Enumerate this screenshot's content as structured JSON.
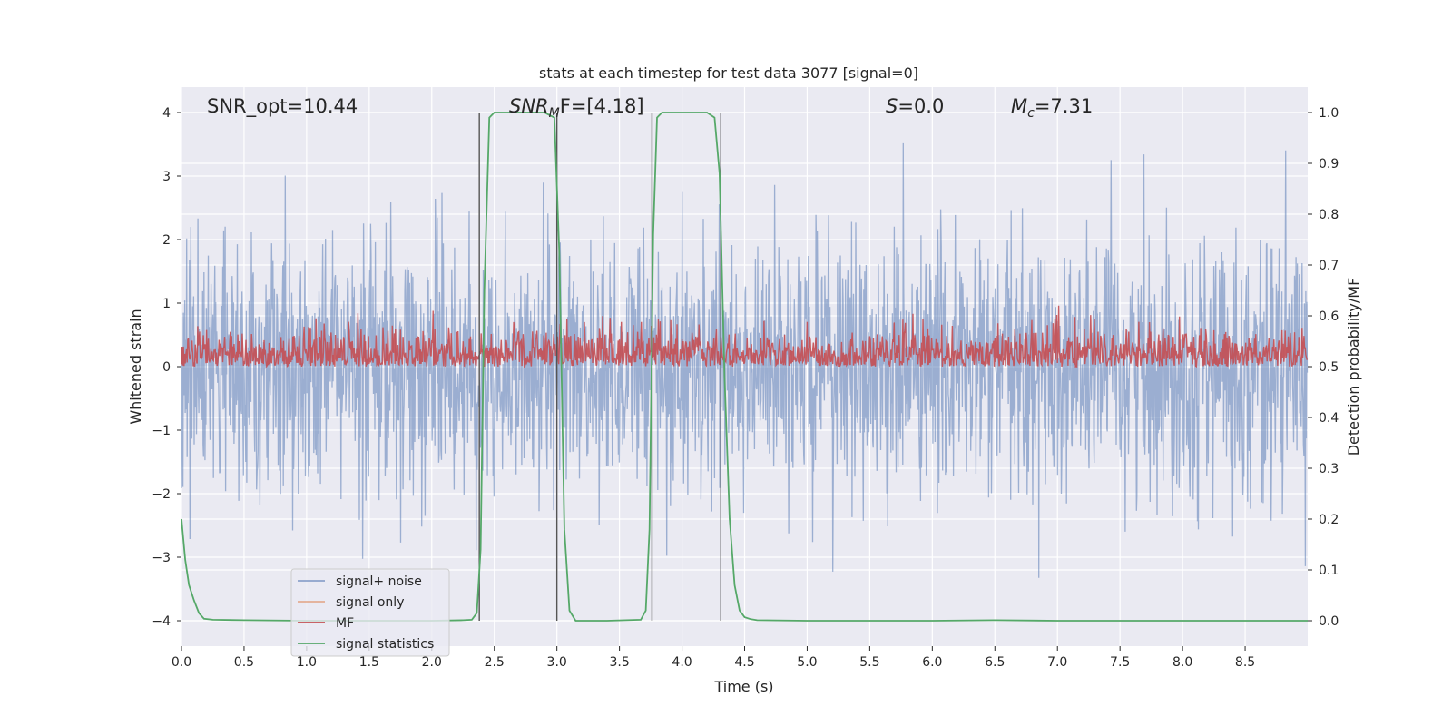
{
  "chart_data": {
    "type": "line",
    "title": "stats at each timestep for test data 3077 [signal=0]",
    "xlabel": "Time (s)",
    "ylabel": "Whitened strain",
    "y2label": "Detection probability/MF",
    "xlim": [
      0.0,
      9.0
    ],
    "ylim": [
      -4.4,
      4.4
    ],
    "y2lim": [
      -0.05,
      1.05
    ],
    "xticks": [
      "0.0",
      "0.5",
      "1.0",
      "1.5",
      "2.0",
      "2.5",
      "3.0",
      "3.5",
      "4.0",
      "4.5",
      "5.0",
      "5.5",
      "6.0",
      "6.5",
      "7.0",
      "7.5",
      "8.0",
      "8.5"
    ],
    "yticks": [
      "4",
      "3",
      "2",
      "1",
      "0",
      "−1",
      "−2",
      "−3",
      "−4"
    ],
    "y2ticks": [
      "1.0",
      "0.9",
      "0.8",
      "0.7",
      "0.6",
      "0.5",
      "0.4",
      "0.3",
      "0.2",
      "0.1",
      "0.0"
    ],
    "grid": true,
    "background": "#eaeaf2",
    "colors": {
      "signal_noise": "#4c72b0",
      "signal_only": "#dd8452",
      "mf": "#c44e52",
      "signal_statistics": "#55a868",
      "vlines": "#555555"
    },
    "legend": {
      "placement": "lower-left",
      "entries": [
        "signal+ noise",
        "signal only",
        "MF",
        "signal statistics"
      ]
    },
    "annotations": {
      "snr_opt": "SNR_opt=10.44",
      "snr_mf_prefix": "SNR",
      "snr_mf_sub": "M",
      "snr_mf_suffix": "F=[4.18]",
      "s_label": "S",
      "s_value": "=0.0",
      "mc_label": "M",
      "mc_sub": "c",
      "mc_value": "=7.31"
    },
    "vertical_lines_x": [
      2.38,
      3.0,
      3.76,
      4.31
    ],
    "series": [
      {
        "name": "signal+ noise",
        "description": "whitened strain noise, roughly Gaussian, std ~1.0, spans about -4 to 4",
        "std": 1.0
      },
      {
        "name": "MF",
        "description": "matched-filter output on right axis, between 0.5 and ~0.6",
        "base": 0.5,
        "range": [
          0.5,
          0.6
        ]
      },
      {
        "name": "signal statistics",
        "x": [
          0.0,
          0.03,
          0.06,
          0.1,
          0.14,
          0.18,
          0.25,
          0.5,
          1.0,
          1.5,
          2.0,
          2.25,
          2.32,
          2.36,
          2.39,
          2.42,
          2.46,
          2.5,
          2.6,
          2.9,
          2.98,
          3.02,
          3.06,
          3.1,
          3.15,
          3.4,
          3.67,
          3.71,
          3.74,
          3.77,
          3.8,
          3.84,
          3.9,
          4.2,
          4.26,
          4.3,
          4.34,
          4.38,
          4.42,
          4.46,
          4.5,
          4.55,
          4.6,
          5.0,
          6.0,
          6.5,
          7.0,
          8.0,
          9.0
        ],
        "y": [
          0.2,
          0.12,
          0.07,
          0.04,
          0.015,
          0.004,
          0.002,
          0.001,
          0.0,
          0.0,
          0.0,
          0.001,
          0.002,
          0.015,
          0.14,
          0.65,
          0.99,
          1.0,
          1.0,
          1.0,
          0.99,
          0.72,
          0.18,
          0.02,
          0.0,
          0.0,
          0.002,
          0.02,
          0.18,
          0.76,
          0.99,
          1.0,
          1.0,
          1.0,
          0.99,
          0.88,
          0.48,
          0.2,
          0.07,
          0.02,
          0.007,
          0.003,
          0.001,
          0.0,
          0.0,
          0.001,
          0.0,
          0.0,
          0.0
        ]
      }
    ]
  }
}
